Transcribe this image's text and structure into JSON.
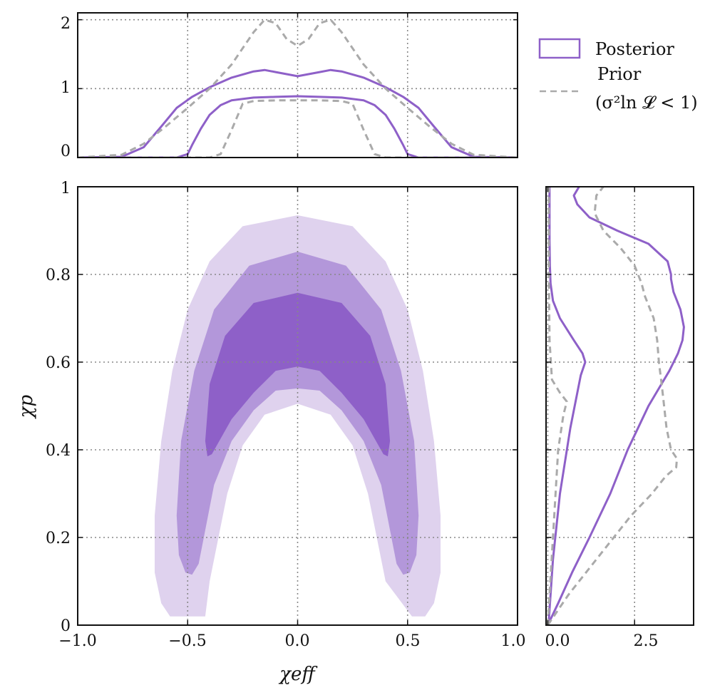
{
  "colors": {
    "posterior": "#8e60c8",
    "prior": "#aaaaaa",
    "contour_levels": [
      "#dfd2ee",
      "#b397da",
      "#8e60c8"
    ]
  },
  "legend": {
    "posterior": "Posterior",
    "prior_line1": "Prior",
    "prior_line2": "(σ²ln 𝓛 < 1)"
  },
  "chart_data": [
    {
      "id": "top_marginal",
      "type": "line",
      "xlim": [
        -1.0,
        1.0
      ],
      "ylim": [
        0,
        2.1
      ],
      "yticks": [
        0,
        1,
        2
      ],
      "ytick_labels": [
        "0",
        "1",
        "2"
      ],
      "xticks": [
        -1.0,
        -0.5,
        0.0,
        0.5,
        1.0
      ],
      "grid": true,
      "series": [
        {
          "name": "Posterior (broad)",
          "style": "solid",
          "x": [
            -1.0,
            -0.8,
            -0.7,
            -0.62,
            -0.55,
            -0.48,
            -0.4,
            -0.3,
            -0.2,
            -0.15,
            -0.1,
            0.0,
            0.1,
            0.15,
            0.2,
            0.3,
            0.4,
            0.48,
            0.55,
            0.62,
            0.7,
            0.8,
            1.0
          ],
          "y": [
            0.0,
            0.01,
            0.15,
            0.45,
            0.72,
            0.88,
            1.02,
            1.16,
            1.25,
            1.27,
            1.24,
            1.18,
            1.24,
            1.27,
            1.25,
            1.16,
            1.02,
            0.88,
            0.72,
            0.45,
            0.15,
            0.01,
            0.0
          ]
        },
        {
          "name": "Posterior (narrow)",
          "style": "solid",
          "x": [
            -1.0,
            -0.55,
            -0.5,
            -0.48,
            -0.44,
            -0.4,
            -0.35,
            -0.3,
            -0.2,
            -0.1,
            0.0,
            0.1,
            0.2,
            0.3,
            0.35,
            0.4,
            0.44,
            0.48,
            0.5,
            0.55,
            1.0
          ],
          "y": [
            0.0,
            0.0,
            0.05,
            0.18,
            0.42,
            0.62,
            0.76,
            0.83,
            0.87,
            0.88,
            0.89,
            0.88,
            0.87,
            0.83,
            0.76,
            0.62,
            0.42,
            0.18,
            0.05,
            0.0,
            0.0
          ]
        },
        {
          "name": "Prior (broad)",
          "style": "dashed",
          "x": [
            -1.0,
            -0.8,
            -0.7,
            -0.6,
            -0.5,
            -0.4,
            -0.3,
            -0.2,
            -0.15,
            -0.1,
            -0.05,
            0.0,
            0.05,
            0.1,
            0.15,
            0.2,
            0.3,
            0.4,
            0.5,
            0.6,
            0.7,
            0.8,
            1.0
          ],
          "y": [
            0.0,
            0.04,
            0.2,
            0.45,
            0.72,
            1.0,
            1.35,
            1.82,
            2.0,
            1.95,
            1.72,
            1.62,
            1.72,
            1.95,
            2.0,
            1.82,
            1.35,
            1.0,
            0.72,
            0.45,
            0.2,
            0.04,
            0.0
          ]
        },
        {
          "name": "Prior (narrow)",
          "style": "dashed",
          "x": [
            -1.0,
            -0.4,
            -0.35,
            -0.3,
            -0.25,
            -0.2,
            -0.1,
            0.0,
            0.1,
            0.2,
            0.25,
            0.3,
            0.35,
            0.4,
            1.0
          ],
          "y": [
            0.0,
            0.0,
            0.05,
            0.4,
            0.78,
            0.82,
            0.83,
            0.83,
            0.83,
            0.82,
            0.78,
            0.4,
            0.05,
            0.0,
            0.0
          ]
        }
      ]
    },
    {
      "id": "joint",
      "type": "area",
      "xlabel": "χeff",
      "ylabel": "χp",
      "xlim": [
        -1.0,
        1.0
      ],
      "ylim": [
        0,
        1.0
      ],
      "xticks": [
        -1.0,
        -0.5,
        0.0,
        0.5,
        1.0
      ],
      "xtick_labels": [
        "−1.0",
        "−0.5",
        "0.0",
        "0.5",
        "1.0"
      ],
      "yticks": [
        0,
        0.2,
        0.4,
        0.6,
        0.8,
        1.0
      ],
      "ytick_labels": [
        "0",
        "0.2",
        "0.4",
        "0.6",
        "0.8",
        "1"
      ],
      "grid": true,
      "contours": [
        {
          "name": "outer",
          "level": 0,
          "outer": [
            [
              -0.65,
              0.25
            ],
            [
              -0.62,
              0.42
            ],
            [
              -0.57,
              0.58
            ],
            [
              -0.5,
              0.72
            ],
            [
              -0.4,
              0.83
            ],
            [
              -0.25,
              0.91
            ],
            [
              0.0,
              0.935
            ],
            [
              0.25,
              0.91
            ],
            [
              0.4,
              0.83
            ],
            [
              0.5,
              0.72
            ],
            [
              0.57,
              0.58
            ],
            [
              0.62,
              0.42
            ],
            [
              0.65,
              0.25
            ],
            [
              0.65,
              0.12
            ],
            [
              0.62,
              0.05
            ],
            [
              0.58,
              0.02
            ],
            [
              0.52,
              0.02
            ]
          ],
          "inner": [
            [
              0.4,
              0.1
            ],
            [
              0.32,
              0.3
            ],
            [
              0.25,
              0.41
            ],
            [
              0.15,
              0.48
            ],
            [
              0.0,
              0.505
            ],
            [
              -0.15,
              0.48
            ],
            [
              -0.25,
              0.41
            ],
            [
              -0.32,
              0.3
            ],
            [
              -0.4,
              0.1
            ],
            [
              -0.42,
              0.02
            ],
            [
              -0.52,
              0.02
            ],
            [
              -0.58,
              0.02
            ],
            [
              -0.62,
              0.05
            ],
            [
              -0.65,
              0.12
            ]
          ]
        },
        {
          "name": "middle",
          "level": 1,
          "outer": [
            [
              -0.55,
              0.25
            ],
            [
              -0.53,
              0.42
            ],
            [
              -0.47,
              0.58
            ],
            [
              -0.38,
              0.72
            ],
            [
              -0.22,
              0.82
            ],
            [
              0.0,
              0.852
            ],
            [
              0.22,
              0.82
            ],
            [
              0.38,
              0.72
            ],
            [
              0.47,
              0.58
            ],
            [
              0.53,
              0.42
            ],
            [
              0.55,
              0.25
            ],
            [
              0.54,
              0.16
            ],
            [
              0.51,
              0.12
            ],
            [
              0.48,
              0.115
            ],
            [
              0.45,
              0.14
            ]
          ],
          "inner": [
            [
              0.38,
              0.32
            ],
            [
              0.3,
              0.42
            ],
            [
              0.2,
              0.49
            ],
            [
              0.1,
              0.535
            ],
            [
              0.0,
              0.54
            ],
            [
              -0.1,
              0.535
            ],
            [
              -0.2,
              0.49
            ],
            [
              -0.3,
              0.42
            ],
            [
              -0.38,
              0.32
            ],
            [
              -0.45,
              0.14
            ],
            [
              -0.48,
              0.115
            ],
            [
              -0.51,
              0.12
            ],
            [
              -0.54,
              0.16
            ]
          ]
        },
        {
          "name": "inner",
          "level": 2,
          "outer": [
            [
              -0.42,
              0.42
            ],
            [
              -0.4,
              0.55
            ],
            [
              -0.33,
              0.66
            ],
            [
              -0.2,
              0.735
            ],
            [
              0.0,
              0.758
            ],
            [
              0.2,
              0.735
            ],
            [
              0.33,
              0.66
            ],
            [
              0.4,
              0.55
            ],
            [
              0.42,
              0.42
            ],
            [
              0.41,
              0.385
            ],
            [
              0.39,
              0.39
            ]
          ],
          "inner": [
            [
              0.3,
              0.47
            ],
            [
              0.2,
              0.53
            ],
            [
              0.1,
              0.58
            ],
            [
              0.0,
              0.59
            ],
            [
              -0.1,
              0.58
            ],
            [
              -0.2,
              0.53
            ],
            [
              -0.3,
              0.47
            ],
            [
              -0.39,
              0.39
            ],
            [
              -0.41,
              0.385
            ]
          ]
        }
      ]
    },
    {
      "id": "right_marginal",
      "type": "line",
      "xlim": [
        -0.05,
        4.2
      ],
      "ylim": [
        0,
        1.0
      ],
      "xticks": [
        0.0,
        2.5
      ],
      "xtick_labels": [
        "0.0",
        "2.5"
      ],
      "yticks": [
        0,
        0.2,
        0.4,
        0.6,
        0.8,
        1.0
      ],
      "grid": true,
      "series": [
        {
          "name": "Posterior (broad)",
          "style": "solid",
          "x": [
            0.0,
            0.3,
            0.7,
            1.2,
            1.8,
            2.3,
            2.6,
            2.9,
            3.2,
            3.5,
            3.75,
            3.88,
            3.92,
            3.82,
            3.62,
            3.55,
            3.55,
            3.45,
            2.9,
            2.0,
            1.2,
            0.85,
            0.75,
            0.9
          ],
          "y": [
            0.0,
            0.05,
            0.12,
            0.2,
            0.3,
            0.4,
            0.45,
            0.5,
            0.54,
            0.58,
            0.62,
            0.65,
            0.68,
            0.72,
            0.76,
            0.79,
            0.8,
            0.83,
            0.87,
            0.9,
            0.93,
            0.96,
            0.98,
            1.0
          ]
        },
        {
          "name": "Posterior (narrow)",
          "style": "solid",
          "x": [
            0.02,
            0.15,
            0.35,
            0.65,
            0.95,
            1.08,
            1.0,
            0.75,
            0.35,
            0.15,
            0.08,
            0.06,
            0.05,
            0.05,
            0.05
          ],
          "y": [
            0.0,
            0.15,
            0.3,
            0.45,
            0.57,
            0.6,
            0.62,
            0.65,
            0.7,
            0.74,
            0.78,
            0.82,
            0.88,
            0.94,
            1.0
          ]
        },
        {
          "name": "Prior (broad)",
          "style": "dashed",
          "x": [
            0.0,
            0.6,
            1.2,
            1.8,
            2.4,
            3.0,
            3.4,
            3.7,
            3.72,
            3.55,
            3.42,
            3.35,
            3.28,
            3.2,
            3.15,
            3.05,
            2.8,
            2.7,
            2.5,
            2.1,
            1.6,
            1.35,
            1.4,
            1.6
          ],
          "y": [
            0.0,
            0.07,
            0.13,
            0.19,
            0.25,
            0.3,
            0.34,
            0.36,
            0.38,
            0.4,
            0.45,
            0.5,
            0.55,
            0.6,
            0.65,
            0.7,
            0.75,
            0.78,
            0.82,
            0.86,
            0.9,
            0.94,
            0.98,
            1.0
          ]
        },
        {
          "name": "Prior (narrow)",
          "style": "dashed",
          "x": [
            0.0,
            0.15,
            0.3,
            0.45,
            0.55,
            0.35,
            0.12,
            0.05,
            0.03,
            0.03
          ],
          "y": [
            0.0,
            0.2,
            0.4,
            0.48,
            0.51,
            0.53,
            0.56,
            0.65,
            0.8,
            1.0
          ]
        }
      ]
    }
  ]
}
